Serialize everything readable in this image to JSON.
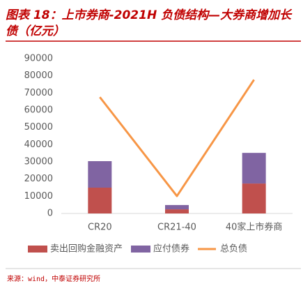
{
  "chart_data": {
    "type": "bar",
    "stacked": true,
    "title": "图表 18：上市券商-2021H 负债结构—大券商增加长",
    "title_line2": "债（亿元）",
    "categories": [
      "CR20",
      "CR21-40",
      "40家上市券商"
    ],
    "series": [
      {
        "name": "卖出回购金融资产",
        "type": "bar",
        "color": "#c0504d",
        "values": [
          15000,
          2400,
          17400
        ]
      },
      {
        "name": "应付债券",
        "type": "bar",
        "color": "#8064a2",
        "values": [
          15400,
          2500,
          17800
        ]
      },
      {
        "name": "总负债",
        "type": "line",
        "color": "#f79646",
        "values": [
          67600,
          10100,
          77700
        ]
      }
    ],
    "ylim": [
      0,
      90000
    ],
    "yticks": [
      0,
      10000,
      20000,
      30000,
      40000,
      50000,
      60000,
      70000,
      80000,
      90000
    ],
    "legend": "bottom",
    "source": "来源：wind，中泰证券研究所"
  }
}
